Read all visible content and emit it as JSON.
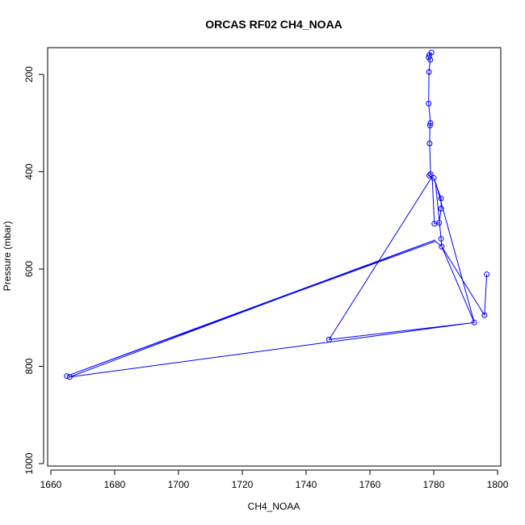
{
  "chart_data": {
    "type": "line",
    "title": "ORCAS RF02 CH4_NOAA",
    "xlabel": "CH4_NOAA",
    "ylabel": "Pressure (mbar)",
    "xlim": [
      1659,
      1801
    ],
    "ylim": [
      1005,
      145
    ],
    "y_reversed": true,
    "grid": false,
    "x_ticks": [
      1660,
      1680,
      1700,
      1720,
      1740,
      1760,
      1780,
      1800
    ],
    "y_ticks": [
      200,
      400,
      600,
      800,
      1000
    ],
    "line_color": "#0000ff",
    "series": [
      {
        "markers": "open-circle",
        "points": [
          [
            1779.3,
            155
          ],
          [
            1778.6,
            160
          ],
          [
            1778.4,
            165
          ],
          [
            1778.9,
            170
          ],
          [
            1778.5,
            195
          ],
          [
            1778.4,
            260
          ],
          [
            1779.0,
            300
          ],
          [
            1778.8,
            305
          ],
          [
            1778.7,
            342
          ],
          [
            1779.0,
            405
          ],
          [
            1778.6,
            408
          ],
          [
            1780.0,
            413
          ],
          [
            1782.3,
            455
          ],
          [
            1782.3,
            476
          ],
          [
            1781.7,
            505
          ],
          [
            1780.2,
            507
          ],
          [
            1782.3,
            538
          ],
          [
            1782.5,
            554
          ],
          [
            1792.7,
            710
          ],
          [
            1795.9,
            695
          ],
          [
            1796.6,
            611
          ],
          [
            1747.2,
            745
          ],
          [
            1665.9,
            822
          ],
          [
            1665.0,
            820
          ]
        ],
        "path": [
          [
            1779.3,
            155
          ],
          [
            1778.6,
            160
          ],
          [
            1778.4,
            165
          ],
          [
            1778.9,
            170
          ],
          [
            1778.5,
            195
          ],
          [
            1778.4,
            260
          ],
          [
            1779.0,
            300
          ],
          [
            1778.8,
            305
          ],
          [
            1778.7,
            342
          ],
          [
            1779.0,
            405
          ],
          [
            1778.6,
            408
          ],
          [
            1780.0,
            413
          ],
          [
            1782.3,
            455
          ],
          [
            1782.3,
            476
          ],
          [
            1781.7,
            505
          ],
          [
            1780.2,
            507
          ],
          [
            1779.5,
            410
          ],
          [
            1747.2,
            745
          ],
          [
            1792.7,
            710
          ],
          [
            1780.5,
            420
          ],
          [
            1782.3,
            538
          ],
          [
            1782.5,
            554
          ],
          [
            1792.7,
            710
          ],
          [
            1665.9,
            822
          ],
          [
            1780.5,
            540
          ],
          [
            1665.0,
            820
          ],
          [
            1780.5,
            543
          ],
          [
            1782.5,
            554
          ],
          [
            1795.9,
            695
          ],
          [
            1796.6,
            611
          ]
        ]
      }
    ]
  }
}
